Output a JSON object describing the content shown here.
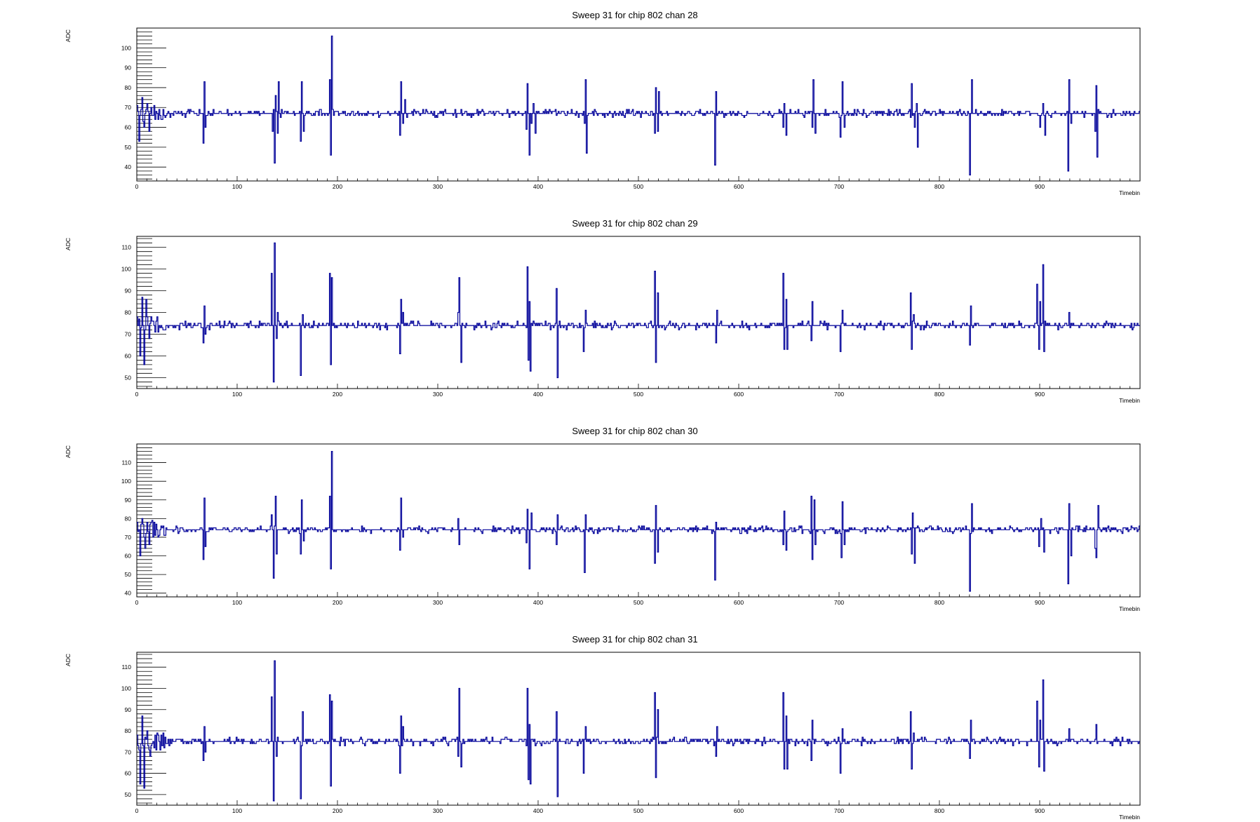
{
  "chart_data": [
    {
      "type": "line",
      "title": "Sweep 31 for chip 802 chan 28",
      "xlabel": "Timebin",
      "ylabel": "ADC",
      "xlim": [
        0,
        1000
      ],
      "ylim": [
        33,
        110
      ],
      "xticks": [
        0,
        100,
        200,
        300,
        400,
        500,
        600,
        700,
        800,
        900
      ],
      "yticks": [
        40,
        50,
        60,
        70,
        80,
        90,
        100
      ],
      "color": "#000099",
      "series": [
        {
          "baseline": 67,
          "spikes": [
            [
              2,
              53
            ],
            [
              5,
              75
            ],
            [
              7,
              60
            ],
            [
              10,
              72
            ],
            [
              12,
              58
            ],
            [
              14,
              70
            ],
            [
              66,
              52
            ],
            [
              67,
              83
            ],
            [
              68,
              60
            ],
            [
              135,
              58
            ],
            [
              137,
              42
            ],
            [
              138,
              76
            ],
            [
              140,
              57
            ],
            [
              140.8,
              83
            ],
            [
              163,
              53
            ],
            [
              164,
              83
            ],
            [
              166,
              58
            ],
            [
              192,
              84
            ],
            [
              193,
              46
            ],
            [
              194,
              106
            ],
            [
              262,
              56
            ],
            [
              263,
              83
            ],
            [
              265,
              62
            ],
            [
              267,
              74
            ],
            [
              388,
              59
            ],
            [
              389,
              82
            ],
            [
              391,
              46
            ],
            [
              393,
              62
            ],
            [
              395,
              72
            ],
            [
              397,
              57
            ],
            [
              446,
              62
            ],
            [
              447,
              84
            ],
            [
              448,
              47
            ],
            [
              516,
              57
            ],
            [
              517,
              80
            ],
            [
              519,
              58
            ],
            [
              520,
              78
            ],
            [
              576,
              41
            ],
            [
              577,
              78
            ],
            [
              644,
              60
            ],
            [
              645,
              72
            ],
            [
              647,
              56
            ],
            [
              673,
              60
            ],
            [
              674,
              84
            ],
            [
              676,
              57
            ],
            [
              701,
              55
            ],
            [
              703,
              83
            ],
            [
              705,
              60
            ],
            [
              772,
              82
            ],
            [
              775,
              60
            ],
            [
              777,
              72
            ],
            [
              778,
              50
            ],
            [
              830,
              36
            ],
            [
              832,
              84
            ],
            [
              900,
              60
            ],
            [
              903,
              72
            ],
            [
              905,
              56
            ],
            [
              928,
              38
            ],
            [
              929,
              84
            ],
            [
              931,
              62
            ],
            [
              955,
              58
            ],
            [
              956,
              81
            ],
            [
              957,
              45
            ]
          ]
        }
      ]
    },
    {
      "type": "line",
      "title": "Sweep 31 for chip 802 chan 29",
      "xlabel": "Timebin",
      "ylabel": "ADC",
      "xlim": [
        0,
        1000
      ],
      "ylim": [
        45,
        115
      ],
      "xticks": [
        0,
        100,
        200,
        300,
        400,
        500,
        600,
        700,
        800,
        900
      ],
      "yticks": [
        50,
        60,
        70,
        80,
        90,
        100,
        110
      ],
      "color": "#000099",
      "series": [
        {
          "baseline": 74,
          "spikes": [
            [
              3,
              60
            ],
            [
              5,
              87
            ],
            [
              7,
              56
            ],
            [
              9,
              86
            ],
            [
              12,
              68
            ],
            [
              14,
              78
            ],
            [
              66,
              66
            ],
            [
              67,
              83
            ],
            [
              68,
              70
            ],
            [
              134,
              98
            ],
            [
              136,
              48
            ],
            [
              137,
              112
            ],
            [
              139,
              68
            ],
            [
              140,
              80
            ],
            [
              163,
              51
            ],
            [
              165,
              79
            ],
            [
              192,
              98
            ],
            [
              193,
              56
            ],
            [
              194,
              96
            ],
            [
              262,
              61
            ],
            [
              263,
              86
            ],
            [
              265,
              80
            ],
            [
              320,
              80
            ],
            [
              321,
              96
            ],
            [
              323,
              57
            ],
            [
              389,
              101
            ],
            [
              390,
              58
            ],
            [
              391,
              85
            ],
            [
              392,
              53
            ],
            [
              418,
              91
            ],
            [
              419,
              50
            ],
            [
              445,
              62
            ],
            [
              447,
              81
            ],
            [
              516,
              99
            ],
            [
              517,
              57
            ],
            [
              519,
              89
            ],
            [
              577,
              66
            ],
            [
              578,
              81
            ],
            [
              644,
              98
            ],
            [
              645,
              63
            ],
            [
              647,
              86
            ],
            [
              648,
              63
            ],
            [
              672,
              67
            ],
            [
              673,
              85
            ],
            [
              701,
              62
            ],
            [
              703,
              81
            ],
            [
              771,
              89
            ],
            [
              772,
              63
            ],
            [
              774,
              79
            ],
            [
              830,
              65
            ],
            [
              831,
              83
            ],
            [
              897,
              93
            ],
            [
              899,
              63
            ],
            [
              900,
              85
            ],
            [
              903,
              102
            ],
            [
              904,
              62
            ],
            [
              929,
              80
            ]
          ]
        }
      ]
    },
    {
      "type": "line",
      "title": "Sweep 31 for chip 802 chan 30",
      "xlabel": "Timebin",
      "ylabel": "ADC",
      "xlim": [
        0,
        1000
      ],
      "ylim": [
        38,
        120
      ],
      "xticks": [
        0,
        100,
        200,
        300,
        400,
        500,
        600,
        700,
        800,
        900
      ],
      "yticks": [
        40,
        50,
        60,
        70,
        80,
        90,
        100,
        110
      ],
      "color": "#000099",
      "series": [
        {
          "baseline": 74,
          "spikes": [
            [
              3,
              60
            ],
            [
              5,
              80
            ],
            [
              8,
              64
            ],
            [
              10,
              78
            ],
            [
              12,
              66
            ],
            [
              15,
              79
            ],
            [
              66,
              58
            ],
            [
              67,
              91
            ],
            [
              68,
              65
            ],
            [
              134,
              82
            ],
            [
              136,
              48
            ],
            [
              138,
              92
            ],
            [
              139,
              61
            ],
            [
              163,
              61
            ],
            [
              164,
              90
            ],
            [
              166,
              68
            ],
            [
              192,
              92
            ],
            [
              193,
              53
            ],
            [
              194,
              116
            ],
            [
              262,
              63
            ],
            [
              263,
              91
            ],
            [
              265,
              70
            ],
            [
              320,
              80
            ],
            [
              321,
              66
            ],
            [
              388,
              67
            ],
            [
              389,
              85
            ],
            [
              391,
              53
            ],
            [
              393,
              83
            ],
            [
              418,
              66
            ],
            [
              419,
              82
            ],
            [
              446,
              51
            ],
            [
              447,
              82
            ],
            [
              516,
              56
            ],
            [
              517,
              87
            ],
            [
              519,
              62
            ],
            [
              576,
              47
            ],
            [
              577,
              78
            ],
            [
              644,
              66
            ],
            [
              645,
              84
            ],
            [
              647,
              63
            ],
            [
              672,
              92
            ],
            [
              673,
              58
            ],
            [
              675,
              90
            ],
            [
              676,
              66
            ],
            [
              702,
              59
            ],
            [
              703,
              89
            ],
            [
              705,
              66
            ],
            [
              772,
              61
            ],
            [
              773,
              83
            ],
            [
              775,
              56
            ],
            [
              830,
              41
            ],
            [
              832,
              88
            ],
            [
              899,
              65
            ],
            [
              901,
              80
            ],
            [
              904,
              62
            ],
            [
              928,
              45
            ],
            [
              929,
              88
            ],
            [
              931,
              60
            ],
            [
              955,
              64
            ],
            [
              956,
              59
            ],
            [
              958,
              87
            ]
          ]
        }
      ]
    },
    {
      "type": "line",
      "title": "Sweep 31 for chip 802 chan 31",
      "xlabel": "Timebin",
      "ylabel": "ADC",
      "xlim": [
        0,
        1000
      ],
      "ylim": [
        45,
        117
      ],
      "xticks": [
        0,
        100,
        200,
        300,
        400,
        500,
        600,
        700,
        800,
        900
      ],
      "yticks": [
        50,
        60,
        70,
        80,
        90,
        100,
        110
      ],
      "color": "#000099",
      "series": [
        {
          "baseline": 75,
          "spikes": [
            [
              3,
              55
            ],
            [
              5,
              87
            ],
            [
              7,
              53
            ],
            [
              10,
              80
            ],
            [
              13,
              68
            ],
            [
              66,
              66
            ],
            [
              67,
              82
            ],
            [
              68,
              70
            ],
            [
              134,
              96
            ],
            [
              136,
              47
            ],
            [
              137,
              113
            ],
            [
              139,
              68
            ],
            [
              163,
              48
            ],
            [
              165,
              89
            ],
            [
              192,
              97
            ],
            [
              193,
              54
            ],
            [
              194,
              94
            ],
            [
              262,
              60
            ],
            [
              263,
              87
            ],
            [
              265,
              82
            ],
            [
              320,
              68
            ],
            [
              321,
              100
            ],
            [
              323,
              63
            ],
            [
              389,
              100
            ],
            [
              390,
              57
            ],
            [
              391,
              83
            ],
            [
              392,
              55
            ],
            [
              418,
              89
            ],
            [
              419,
              49
            ],
            [
              445,
              60
            ],
            [
              447,
              82
            ],
            [
              516,
              98
            ],
            [
              517,
              58
            ],
            [
              519,
              90
            ],
            [
              577,
              68
            ],
            [
              578,
              82
            ],
            [
              644,
              98
            ],
            [
              645,
              62
            ],
            [
              647,
              87
            ],
            [
              648,
              62
            ],
            [
              672,
              66
            ],
            [
              673,
              85
            ],
            [
              701,
              60
            ],
            [
              703,
              81
            ],
            [
              771,
              89
            ],
            [
              772,
              62
            ],
            [
              774,
              79
            ],
            [
              830,
              67
            ],
            [
              831,
              85
            ],
            [
              897,
              94
            ],
            [
              899,
              63
            ],
            [
              900,
              85
            ],
            [
              903,
              104
            ],
            [
              904,
              61
            ],
            [
              929,
              81
            ],
            [
              956,
              83
            ]
          ]
        }
      ]
    }
  ]
}
